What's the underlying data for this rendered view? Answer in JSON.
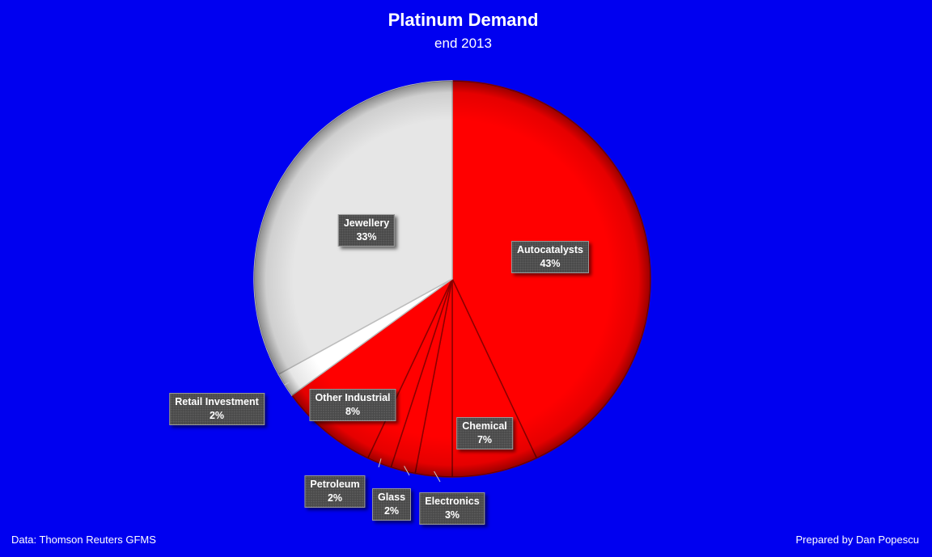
{
  "header": {
    "title": "Platinum Demand",
    "subtitle": "end 2013"
  },
  "footer": {
    "source": "Data: Thomson Reuters GFMS",
    "credit": "Prepared by Dan Popescu"
  },
  "colors": {
    "background": "#0000f0",
    "industrial": "#ff0000",
    "jewellery": "#e6e6e6",
    "retail": "#ffffff"
  },
  "chart_data": {
    "type": "pie",
    "title": "Platinum Demand",
    "subtitle": "end 2013",
    "start_angle_deg": 0,
    "direction": "clockwise",
    "slices": [
      {
        "label": "Autocatalysts",
        "value": 43,
        "pct_label": "43%",
        "color": "#ff0000"
      },
      {
        "label": "Chemical",
        "value": 7,
        "pct_label": "7%",
        "color": "#ff0000"
      },
      {
        "label": "Electronics",
        "value": 3,
        "pct_label": "3%",
        "color": "#ff0000"
      },
      {
        "label": "Glass",
        "value": 2,
        "pct_label": "2%",
        "color": "#ff0000"
      },
      {
        "label": "Petroleum",
        "value": 2,
        "pct_label": "2%",
        "color": "#ff0000"
      },
      {
        "label": "Other Industrial",
        "value": 8,
        "pct_label": "8%",
        "color": "#ff0000"
      },
      {
        "label": "Retail Investment",
        "value": 2,
        "pct_label": "2%",
        "color": "#ffffff"
      },
      {
        "label": "Jewellery",
        "value": 33,
        "pct_label": "33%",
        "color": "#e6e6e6"
      }
    ]
  }
}
